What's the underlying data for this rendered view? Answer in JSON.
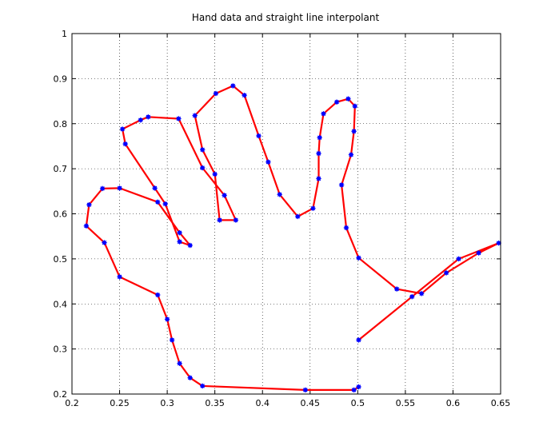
{
  "chart_data": {
    "type": "line",
    "title": "Hand data and straight line interpolant",
    "xlabel": "",
    "ylabel": "",
    "xlim": [
      0.2,
      0.65
    ],
    "ylim": [
      0.2,
      1.0
    ],
    "x_ticks": [
      "0.2",
      "0.25",
      "0.3",
      "0.35",
      "0.4",
      "0.45",
      "0.5",
      "0.55",
      "0.6",
      "0.65"
    ],
    "y_ticks": [
      "0.2",
      "0.3",
      "0.4",
      "0.5",
      "0.6",
      "0.7",
      "0.8",
      "0.9",
      "1"
    ],
    "grid": true,
    "grid_style": "dotted",
    "line_color": "#ff0000",
    "marker_color": "#0000ff",
    "marker": "asterisk",
    "series": [
      {
        "x": [
          0.501,
          0.496,
          0.445,
          0.337,
          0.324,
          0.313,
          0.305,
          0.3,
          0.29,
          0.25,
          0.234,
          0.215,
          0.218,
          0.232,
          0.25,
          0.29,
          0.313,
          0.324,
          0.313,
          0.298,
          0.287,
          0.256,
          0.253,
          0.272,
          0.28,
          0.312,
          0.337,
          0.36,
          0.372,
          0.355,
          0.35,
          0.337,
          0.329,
          0.351,
          0.369,
          0.381,
          0.396,
          0.406,
          0.418,
          0.437,
          0.453,
          0.459,
          0.459,
          0.46,
          0.464,
          0.478,
          0.49,
          0.497,
          0.496,
          0.493,
          0.483,
          0.488,
          0.501,
          0.541,
          0.567,
          0.593,
          0.627,
          0.648,
          0.606,
          0.557,
          0.501
        ],
        "y": [
          0.216,
          0.209,
          0.209,
          0.218,
          0.236,
          0.268,
          0.32,
          0.366,
          0.42,
          0.46,
          0.536,
          0.573,
          0.62,
          0.656,
          0.657,
          0.626,
          0.558,
          0.53,
          0.538,
          0.622,
          0.657,
          0.755,
          0.788,
          0.808,
          0.815,
          0.811,
          0.702,
          0.641,
          0.586,
          0.586,
          0.688,
          0.742,
          0.818,
          0.867,
          0.884,
          0.863,
          0.773,
          0.715,
          0.643,
          0.594,
          0.612,
          0.678,
          0.734,
          0.769,
          0.822,
          0.848,
          0.855,
          0.839,
          0.783,
          0.731,
          0.664,
          0.569,
          0.502,
          0.433,
          0.423,
          0.469,
          0.513,
          0.535,
          0.5,
          0.416,
          0.32
        ]
      }
    ]
  }
}
